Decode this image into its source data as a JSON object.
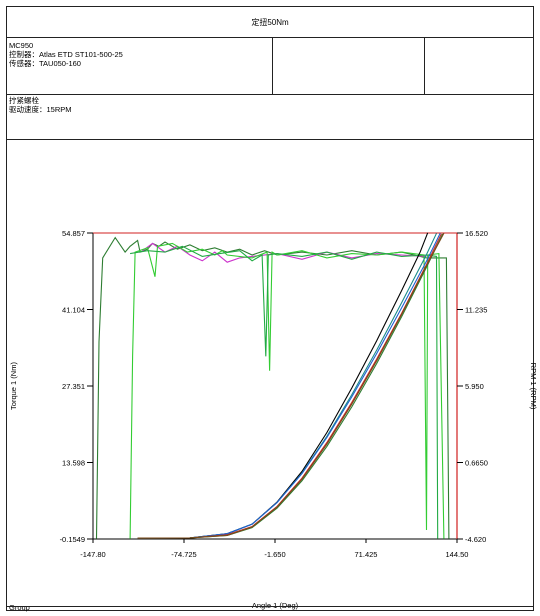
{
  "report": {
    "title": "定扭50Nm",
    "info": {
      "model": "MC950",
      "controller": "控制器：Atlas ETD ST101-500-25",
      "sensor": "传感器：TAU050-160"
    },
    "process": {
      "name": "拧紧螺栓",
      "speed": "驱动速度：15RPM"
    }
  },
  "footer": {
    "group_label": "Group"
  },
  "chart_data": {
    "type": "line",
    "xlabel": "Angle 1 (Deg)",
    "ylabel": "Torque 1 (Nm)",
    "y2label": "RPM 1 (RPM)",
    "xlim": [
      -147.8,
      144.5
    ],
    "ylim": [
      -0.1549,
      54.857
    ],
    "y2lim": [
      -4.62,
      16.52
    ],
    "x_ticks": [
      "-147.80",
      "-74.725",
      "-1.650",
      "71.425",
      "144.50"
    ],
    "y_ticks": [
      "-0.1549",
      "13.598",
      "27.351",
      "41.104",
      "54.857"
    ],
    "y2_ticks": [
      "-4.620",
      "0.6650",
      "5.950",
      "11.235",
      "16.520"
    ],
    "grid": false,
    "colors": {
      "axis_right": "#d02020",
      "frame": "#888888"
    },
    "torque_series": [
      {
        "color": "#000000",
        "points": [
          [
            -112,
            0
          ],
          [
            -70,
            0.05
          ],
          [
            -40,
            0.8
          ],
          [
            -20,
            2.5
          ],
          [
            0,
            6.5
          ],
          [
            20,
            12
          ],
          [
            40,
            19
          ],
          [
            60,
            27
          ],
          [
            80,
            35.5
          ],
          [
            100,
            44.5
          ],
          [
            115,
            51.5
          ],
          [
            121,
            54.9
          ]
        ]
      },
      {
        "color": "#1a8a8a",
        "points": [
          [
            -112,
            0
          ],
          [
            -70,
            0.05
          ],
          [
            -40,
            0.8
          ],
          [
            -20,
            2.5
          ],
          [
            0,
            6.4
          ],
          [
            20,
            11.7
          ],
          [
            40,
            18.3
          ],
          [
            60,
            25.8
          ],
          [
            80,
            33.8
          ],
          [
            100,
            42.3
          ],
          [
            120,
            51
          ],
          [
            128,
            54.8
          ]
        ]
      },
      {
        "color": "#1f5fd0",
        "points": [
          [
            -112,
            0
          ],
          [
            -70,
            0.05
          ],
          [
            -40,
            0.8
          ],
          [
            -20,
            2.5
          ],
          [
            0,
            6.4
          ],
          [
            20,
            11.6
          ],
          [
            40,
            18.1
          ],
          [
            60,
            25.4
          ],
          [
            80,
            33.2
          ],
          [
            100,
            41.4
          ],
          [
            120,
            49.8
          ],
          [
            131,
            54.8
          ]
        ]
      },
      {
        "color": "#c62828",
        "points": [
          [
            -112,
            0
          ],
          [
            -70,
            0.05
          ],
          [
            -40,
            0.6
          ],
          [
            -20,
            2.1
          ],
          [
            0,
            5.7
          ],
          [
            20,
            10.8
          ],
          [
            40,
            17.2
          ],
          [
            60,
            24.4
          ],
          [
            80,
            32.2
          ],
          [
            100,
            40.4
          ],
          [
            120,
            49.2
          ],
          [
            132,
            54.7
          ]
        ]
      },
      {
        "color": "#2e7d32",
        "points": [
          [
            -112,
            0
          ],
          [
            -70,
            0.05
          ],
          [
            -40,
            0.5
          ],
          [
            -20,
            1.9
          ],
          [
            0,
            5.4
          ],
          [
            20,
            10.3
          ],
          [
            40,
            16.5
          ],
          [
            60,
            23.6
          ],
          [
            80,
            31.4
          ],
          [
            100,
            39.8
          ],
          [
            120,
            48.7
          ],
          [
            133,
            54.7
          ]
        ]
      },
      {
        "color": "#7a4a1a",
        "points": [
          [
            -112,
            0
          ],
          [
            -70,
            0.05
          ],
          [
            -40,
            0.5
          ],
          [
            -20,
            2.0
          ],
          [
            0,
            5.6
          ],
          [
            20,
            10.6
          ],
          [
            40,
            16.9
          ],
          [
            60,
            24.1
          ],
          [
            80,
            31.9
          ],
          [
            100,
            40.2
          ],
          [
            120,
            49
          ],
          [
            134,
            54.8
          ]
        ]
      }
    ],
    "rpm_series": [
      {
        "color": "#2e7d32",
        "points": [
          [
            -145,
            -4.6
          ],
          [
            -143,
            9
          ],
          [
            -140,
            14.8
          ],
          [
            -130,
            16.2
          ],
          [
            -122,
            15.2
          ],
          [
            -118,
            15.6
          ],
          [
            -112,
            16
          ],
          [
            -110,
            15.2
          ],
          [
            -104,
            15.4
          ],
          [
            -100,
            15.8
          ],
          [
            -95,
            15.6
          ],
          [
            -90,
            15.9
          ],
          [
            -80,
            15.4
          ],
          [
            -70,
            15.7
          ],
          [
            -60,
            15.3
          ],
          [
            -50,
            15.5
          ],
          [
            -40,
            15.2
          ],
          [
            -30,
            15.4
          ],
          [
            -20,
            15
          ],
          [
            -10,
            15.3
          ],
          [
            0,
            15
          ],
          [
            20,
            15.2
          ],
          [
            40,
            15
          ],
          [
            60,
            15.3
          ],
          [
            80,
            15
          ],
          [
            100,
            15.2
          ],
          [
            120,
            14.8
          ],
          [
            136,
            14.8
          ],
          [
            138,
            -4.6
          ]
        ]
      },
      {
        "color": "#cc33cc",
        "points": [
          [
            -108,
            15.3
          ],
          [
            -100,
            15.8
          ],
          [
            -90,
            15.2
          ],
          [
            -80,
            15.6
          ],
          [
            -70,
            15
          ],
          [
            -60,
            14.6
          ],
          [
            -50,
            15.2
          ],
          [
            -40,
            14.5
          ],
          [
            -30,
            14.8
          ],
          [
            -20,
            14.9
          ],
          [
            0,
            15.1
          ],
          [
            20,
            14.7
          ],
          [
            40,
            15.2
          ],
          [
            60,
            14.8
          ],
          [
            80,
            15.1
          ],
          [
            100,
            15
          ],
          [
            120,
            14.9
          ]
        ]
      },
      {
        "color": "#33cc33",
        "points": [
          [
            -118,
            -4.6
          ],
          [
            -116,
            8
          ],
          [
            -114,
            15.2
          ],
          [
            -104,
            15.5
          ],
          [
            -98,
            13.5
          ],
          [
            -96,
            15.6
          ],
          [
            -84,
            15.8
          ],
          [
            -72,
            15.2
          ],
          [
            -60,
            15.4
          ],
          [
            -50,
            15
          ],
          [
            -44,
            15.3
          ],
          [
            -40,
            15
          ],
          [
            -20,
            14.8
          ],
          [
            -8,
            15.2
          ],
          [
            -6,
            7
          ],
          [
            -4,
            15.2
          ],
          [
            0,
            15
          ],
          [
            20,
            15.3
          ],
          [
            40,
            14.8
          ],
          [
            60,
            15.1
          ],
          [
            80,
            15
          ],
          [
            100,
            15.2
          ],
          [
            118,
            15
          ],
          [
            120,
            -4
          ],
          [
            121,
            15
          ],
          [
            130,
            15.1
          ],
          [
            134,
            -4.6
          ]
        ]
      },
      {
        "color": "#22aa44",
        "points": [
          [
            -118,
            15.1
          ],
          [
            -104,
            15.3
          ],
          [
            -90,
            15.2
          ],
          [
            -76,
            15.6
          ],
          [
            -60,
            14.9
          ],
          [
            -46,
            15.1
          ],
          [
            -30,
            15.3
          ],
          [
            -20,
            14.6
          ],
          [
            -12,
            15
          ],
          [
            -9,
            8
          ],
          [
            -7,
            15
          ],
          [
            0,
            15.1
          ],
          [
            20,
            14.9
          ],
          [
            40,
            15.2
          ],
          [
            60,
            14.7
          ],
          [
            80,
            15.2
          ],
          [
            100,
            14.9
          ],
          [
            120,
            15
          ],
          [
            128,
            14.9
          ],
          [
            129,
            -4.6
          ]
        ]
      }
    ]
  }
}
